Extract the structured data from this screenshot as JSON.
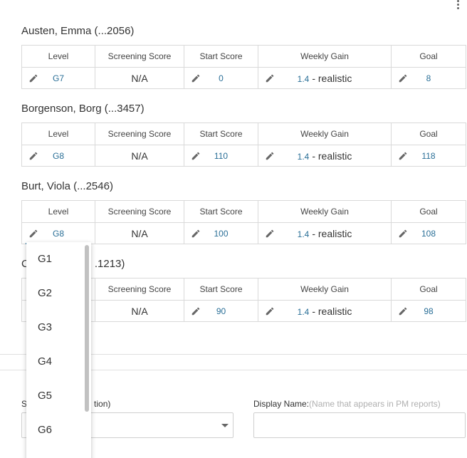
{
  "columns": {
    "level": "Level",
    "screening": "Screening Score",
    "start": "Start Score",
    "gain": "Weekly Gain",
    "goal": "Goal"
  },
  "students": [
    {
      "name": "Austen, Emma (...2056)",
      "level": "G7",
      "screening": "N/A",
      "start": "0",
      "gain": "1.4",
      "gain_suffix": "- realistic",
      "goal": "8"
    },
    {
      "name": "Borgenson, Borg (...3457)",
      "level": "G8",
      "screening": "N/A",
      "start": "110",
      "gain": "1.4",
      "gain_suffix": "- realistic",
      "goal": "118"
    },
    {
      "name": "Burt, Viola (...2546)",
      "level": "G8",
      "screening": "N/A",
      "start": "100",
      "gain": "1.4",
      "gain_suffix": "- realistic",
      "goal": "108"
    },
    {
      "name_visible_start": "C",
      "name_visible_end": ".1213)",
      "level": "",
      "screening": "N/A",
      "start": "90",
      "gain": "1.4",
      "gain_suffix": "- realistic",
      "goal": "98"
    }
  ],
  "level_dropdown": {
    "options": [
      "G1",
      "G2",
      "G3",
      "G4",
      "G5",
      "G6"
    ]
  },
  "form": {
    "select_label_start": "S",
    "select_label_end": "tion)",
    "display_name_label": "Display Name:",
    "display_name_hint": "(Name that appears in PM reports)",
    "display_name_value": ""
  },
  "colors": {
    "link_value": "#2a6f97",
    "border": "#d9d9d9",
    "active_underline": "#3b7fa4"
  }
}
